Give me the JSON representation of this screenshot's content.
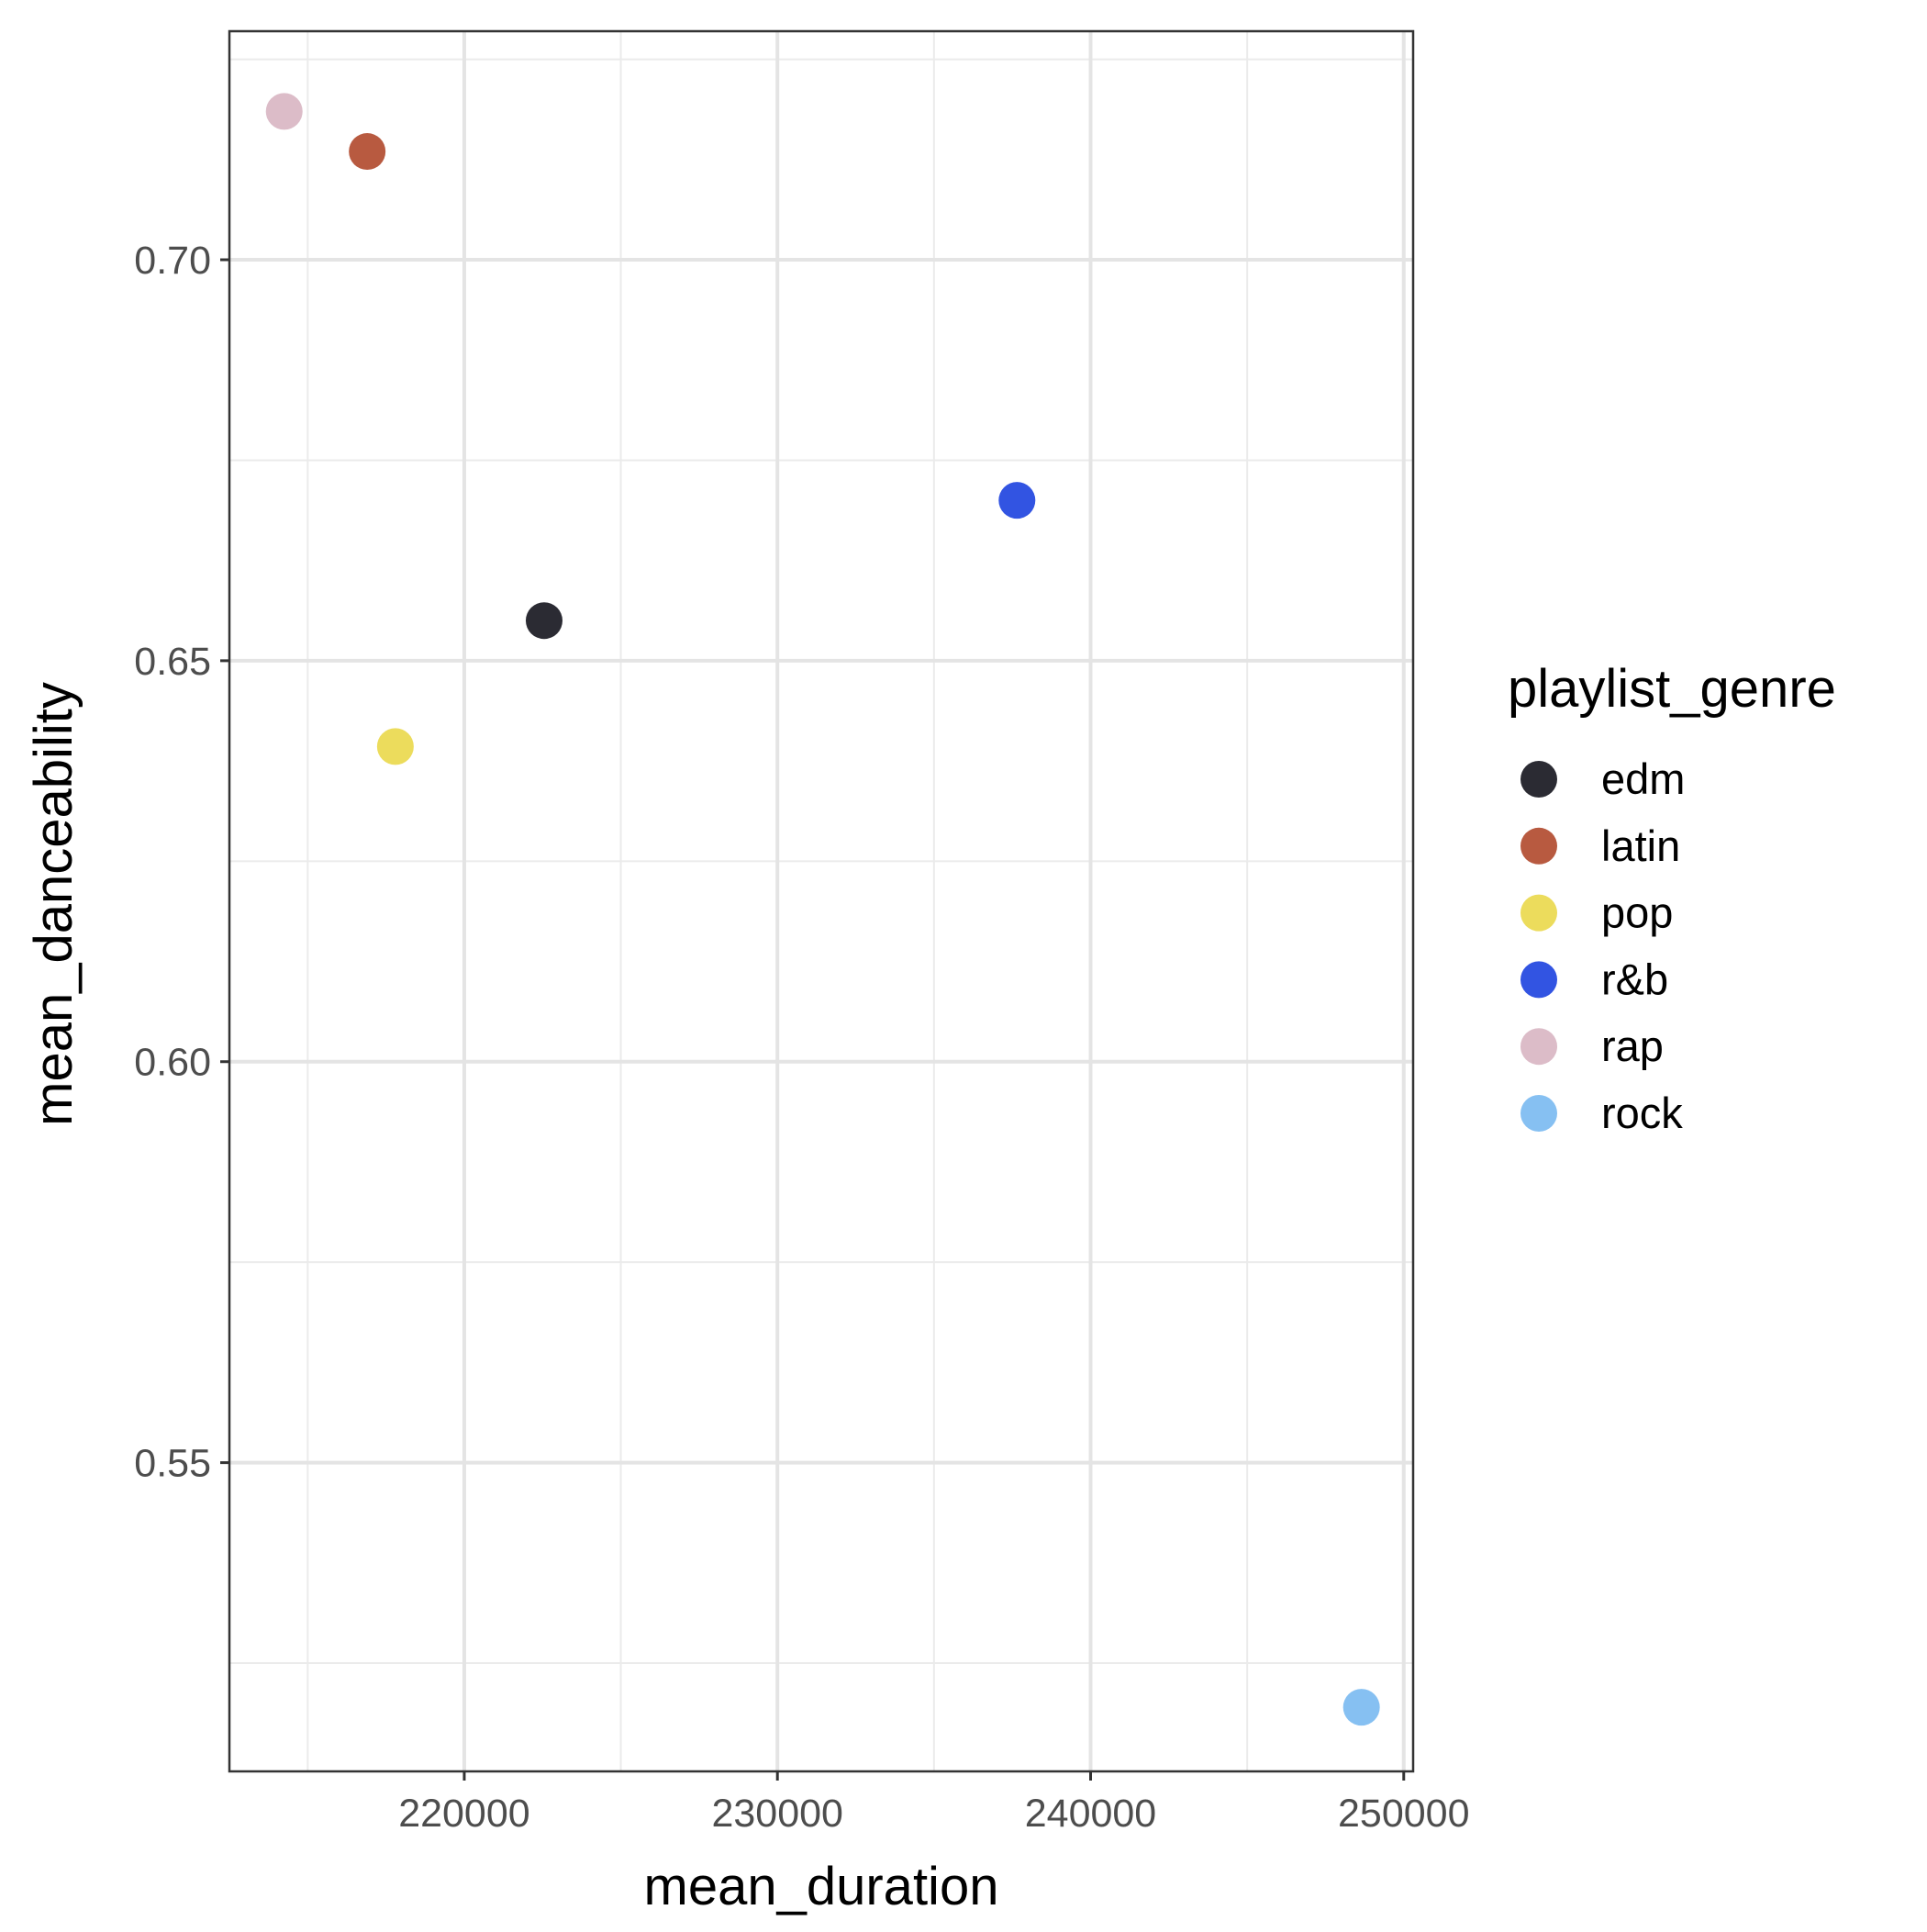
{
  "chart_data": {
    "type": "scatter",
    "xlabel": "mean_duration",
    "ylabel": "mean_danceability",
    "xlim": [
      212500,
      250300
    ],
    "ylim": [
      0.5115,
      0.7285
    ],
    "x_major_ticks": [
      220000,
      230000,
      240000,
      250000
    ],
    "x_minor_ticks": [
      215000,
      225000,
      235000,
      245000
    ],
    "y_major_ticks": [
      0.55,
      0.6,
      0.65,
      0.7
    ],
    "y_minor_ticks": [
      0.525,
      0.575,
      0.625,
      0.675,
      0.725
    ],
    "x_tick_labels": [
      "220000",
      "230000",
      "240000",
      "250000"
    ],
    "y_tick_labels": [
      "0.55",
      "0.60",
      "0.65",
      "0.70"
    ],
    "grid": true,
    "legend": {
      "title": "playlist_genre",
      "position": "right"
    },
    "series": [
      {
        "name": "edm",
        "color": "#2b2b33",
        "x": 222550,
        "y": 0.655
      },
      {
        "name": "latin",
        "color": "#b85a40",
        "x": 216900,
        "y": 0.7135
      },
      {
        "name": "pop",
        "color": "#ecdc5c",
        "x": 217800,
        "y": 0.6393
      },
      {
        "name": "r&b",
        "color": "#3254e2",
        "x": 237650,
        "y": 0.67
      },
      {
        "name": "rap",
        "color": "#dcbcc8",
        "x": 214250,
        "y": 0.7185
      },
      {
        "name": "rock",
        "color": "#86c0f2",
        "x": 248650,
        "y": 0.5195
      }
    ]
  }
}
